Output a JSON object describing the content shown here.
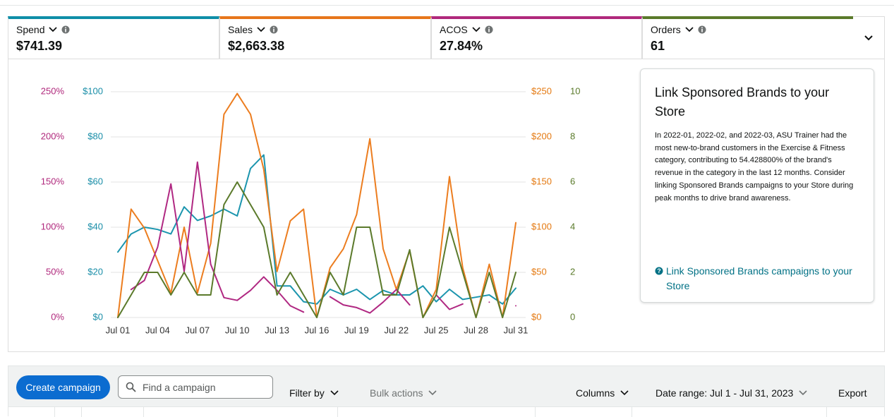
{
  "metrics": [
    {
      "label": "Spend",
      "value": "$741.39",
      "color": "#0f8ea8"
    },
    {
      "label": "Sales",
      "value": "$2,663.38",
      "color": "#e7761b"
    },
    {
      "label": "ACOS",
      "value": "27.84%",
      "color": "#b0287c"
    },
    {
      "label": "Orders",
      "value": "61",
      "color": "#5a7a2a"
    }
  ],
  "chart_data": {
    "type": "line",
    "categories": [
      "Jul 01",
      null,
      null,
      "Jul 04",
      null,
      null,
      "Jul 07",
      null,
      null,
      "Jul 10",
      null,
      null,
      "Jul 13",
      null,
      null,
      "Jul 16",
      null,
      null,
      "Jul 19",
      null,
      null,
      "Jul 22",
      null,
      null,
      "Jul 25",
      null,
      null,
      "Jul 28",
      null,
      null,
      "Jul 31"
    ],
    "grid": true,
    "axes": [
      {
        "id": "acos",
        "side": "left",
        "color": "#b0287c",
        "lim": [
          0,
          250
        ],
        "ticks": [
          {
            "value": 0,
            "label": "0%"
          },
          {
            "value": 50,
            "label": "50%"
          },
          {
            "value": 100,
            "label": "100%"
          },
          {
            "value": 150,
            "label": "150%"
          },
          {
            "value": 200,
            "label": "200%"
          },
          {
            "value": 250,
            "label": "250%"
          }
        ]
      },
      {
        "id": "spend",
        "side": "left",
        "color": "#1a8ea8",
        "lim": [
          0,
          100
        ],
        "ticks": [
          {
            "value": 0,
            "label": "$0"
          },
          {
            "value": 20,
            "label": "$20"
          },
          {
            "value": 40,
            "label": "$40"
          },
          {
            "value": 60,
            "label": "$60"
          },
          {
            "value": 80,
            "label": "$80"
          },
          {
            "value": 100,
            "label": "$100"
          }
        ]
      },
      {
        "id": "sales",
        "side": "right",
        "color": "#e47911",
        "lim": [
          0,
          250
        ],
        "ticks": [
          {
            "value": 0,
            "label": "$0"
          },
          {
            "value": 50,
            "label": "$50"
          },
          {
            "value": 100,
            "label": "$100"
          },
          {
            "value": 150,
            "label": "$150"
          },
          {
            "value": 200,
            "label": "$200"
          },
          {
            "value": 250,
            "label": "$250"
          }
        ]
      },
      {
        "id": "orders",
        "side": "right",
        "color": "#5a7a2a",
        "lim": [
          0,
          10
        ],
        "ticks": [
          0,
          2,
          4,
          6,
          8,
          10
        ]
      }
    ],
    "series": [
      {
        "axis": "spend",
        "color": "#1b95ae",
        "values": [
          29,
          37,
          40,
          39,
          37,
          49,
          43,
          45,
          48,
          45,
          66,
          72,
          14,
          14,
          7,
          6,
          12.5,
          10,
          12.5,
          8,
          12,
          10,
          10,
          14,
          7,
          12.5,
          8,
          9,
          10,
          6,
          13
        ]
      },
      {
        "axis": "sales",
        "color": "#ec7d1f",
        "values": [
          0,
          120,
          99,
          63,
          27,
          100,
          27,
          82,
          225,
          248,
          225,
          164,
          51,
          107,
          120,
          0,
          55,
          76,
          114,
          198,
          76,
          31,
          74,
          0,
          31,
          156,
          55,
          0,
          59,
          0,
          105
        ]
      },
      {
        "axis": "acos",
        "color": "#b02882",
        "values": [
          null,
          31,
          41,
          78,
          148,
          51,
          172,
          59,
          22,
          19,
          30,
          45,
          30,
          13,
          6,
          null,
          23,
          14,
          11,
          5,
          17,
          31,
          14,
          null,
          25,
          9,
          15,
          null,
          17,
          null,
          13
        ]
      },
      {
        "axis": "orders",
        "color": "#5b7a2b",
        "values": [
          0,
          1,
          2,
          2,
          1,
          2,
          1,
          1,
          5,
          6,
          5,
          4,
          1,
          2,
          1,
          0,
          2,
          1,
          4,
          4,
          1,
          1,
          3,
          0,
          1,
          4,
          2,
          0,
          2,
          0,
          2
        ]
      }
    ]
  },
  "card": {
    "title": "Link Sponsored Brands to your Store",
    "body": "In 2022-01, 2022-02, and 2022-03, ASU Trainer had the most new-to-brand customers in the Exercise & Fitness category, contributing to 54.428800% of the brand's revenue in the category in the last 12 months. Consider linking Sponsored Brands campaigns to your Store during peak months to drive brand awareness.",
    "link": "Link Sponsored Brands campaigns to your Store"
  },
  "toolbar": {
    "create": "Create campaign",
    "search": "Find a campaign",
    "filter": "Filter by",
    "bulk": "Bulk actions",
    "columns": "Columns",
    "date_range": "Date range: Jul 1 - Jul 31, 2023",
    "export": "Export"
  }
}
